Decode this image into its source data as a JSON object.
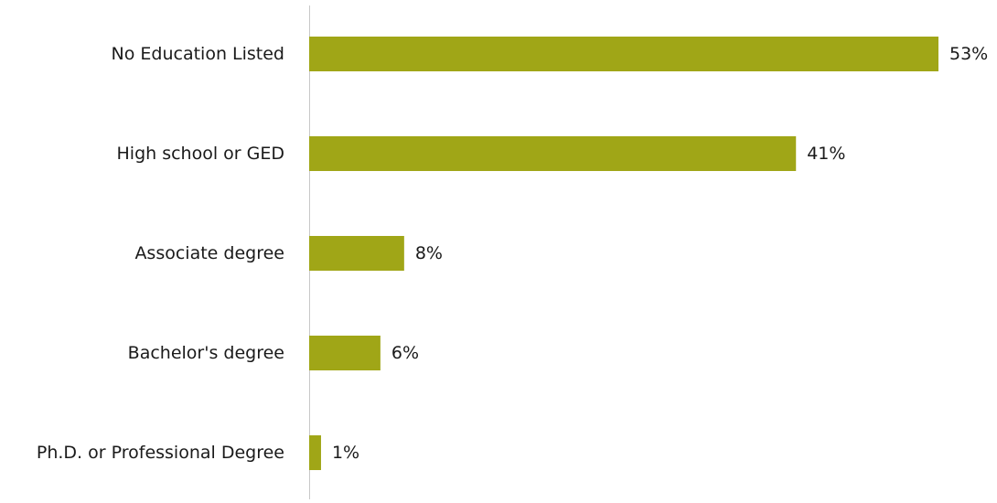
{
  "chart_data": {
    "type": "bar",
    "orientation": "horizontal",
    "title": "",
    "xlabel": "",
    "ylabel": "",
    "value_unit": "%",
    "xlim": [
      0,
      53
    ],
    "grid": false,
    "legend": "none",
    "bar_color": "#A0A617",
    "axis_color": "#C8C8C8",
    "categories": [
      "No Education Listed",
      "High school or GED",
      "Associate degree",
      "Bachelor's degree",
      "Ph.D. or Professional Degree"
    ],
    "values": [
      53,
      41,
      8,
      6,
      1
    ],
    "data_labels": [
      "53%",
      "41%",
      "8%",
      "6%",
      "1%"
    ]
  }
}
